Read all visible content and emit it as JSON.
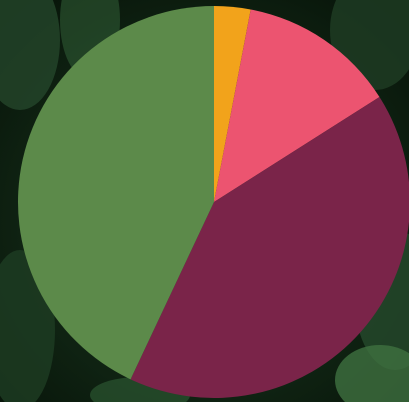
{
  "chart_data": {
    "type": "pie",
    "title": "",
    "legend": "none",
    "slices": [
      {
        "value": 3,
        "color": "#f2a31b"
      },
      {
        "value": 13,
        "color": "#ec5470"
      },
      {
        "value": 41,
        "color": "#7a2449"
      },
      {
        "value": 43,
        "color": "#5c8a4a"
      }
    ]
  },
  "background": {
    "description_colors": [
      "#0c1f12",
      "#1d3b22",
      "#2e5a32",
      "#3f7040"
    ]
  }
}
